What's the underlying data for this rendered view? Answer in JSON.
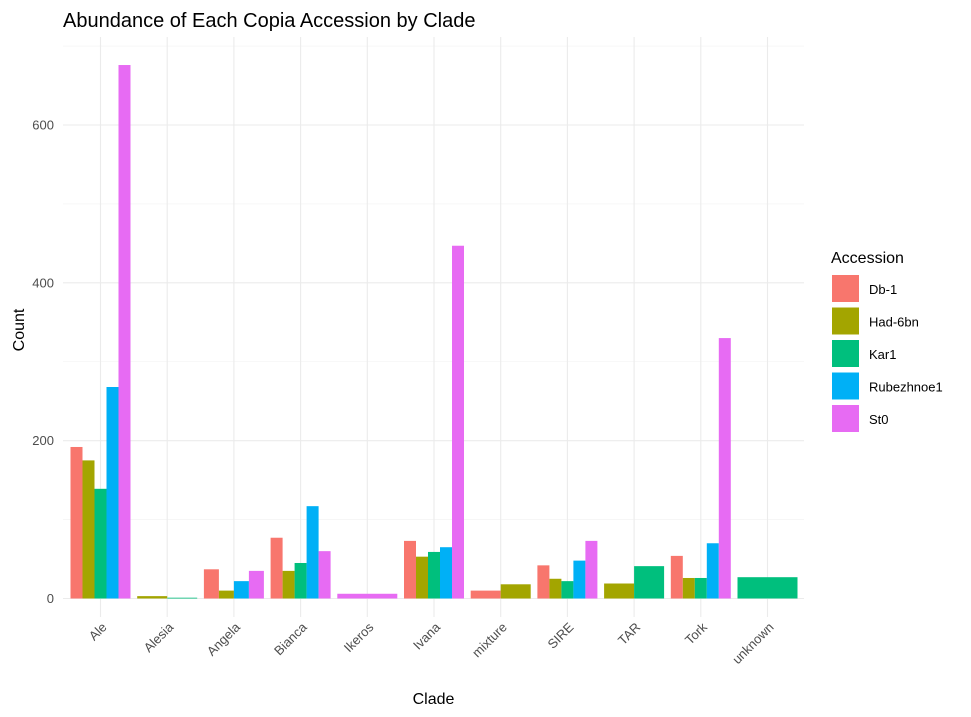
{
  "chart_data": {
    "type": "bar",
    "title": "Abundance of Each Copia Accession by Clade",
    "xlabel": "Clade",
    "ylabel": "Count",
    "ylim": [
      0,
      700
    ],
    "yticks": [
      0,
      200,
      400,
      600
    ],
    "grid": true,
    "legend": {
      "title": "Accession",
      "position": "right"
    },
    "categories": [
      "Ale",
      "Alesia",
      "Angela",
      "Bianca",
      "Ikeros",
      "Ivana",
      "mixture",
      "SIRE",
      "TAR",
      "Tork",
      "unknown"
    ],
    "series": [
      {
        "name": "Db-1",
        "color": "#F8766D",
        "values": [
          192,
          null,
          37,
          77,
          null,
          73,
          null,
          42,
          null,
          54,
          null
        ]
      },
      {
        "name": "Had-6bn",
        "color": "#A3A500",
        "values": [
          175,
          3,
          10,
          35,
          null,
          53,
          null,
          25,
          null,
          26,
          null
        ]
      },
      {
        "name": "Kar1",
        "color": "#00BF7D",
        "values": [
          139,
          1,
          null,
          45,
          null,
          59,
          null,
          22,
          null,
          26,
          null
        ]
      },
      {
        "name": "Rubezhnoe1",
        "color": "#00B0F6",
        "values": [
          268,
          null,
          22,
          117,
          null,
          65,
          null,
          48,
          null,
          70,
          null
        ]
      },
      {
        "name": "St0",
        "color": "#E76BF3",
        "values": [
          676,
          null,
          35,
          60,
          null,
          447,
          null,
          73,
          null,
          330,
          null
        ]
      }
    ],
    "groups": [
      {
        "category": "Ikeros",
        "bars": [
          {
            "series": "St0",
            "value": 6
          }
        ]
      },
      {
        "category": "mixture",
        "bars": [
          {
            "series": "Db-1",
            "value": 10
          },
          {
            "series": "Had-6bn",
            "value": 18
          }
        ]
      },
      {
        "category": "TAR",
        "bars": [
          {
            "series": "Had-6bn",
            "value": 19
          },
          {
            "series": "Kar1",
            "value": 41
          }
        ]
      },
      {
        "category": "unknown",
        "bars": [
          {
            "series": "Kar1",
            "value": 27
          }
        ]
      }
    ]
  }
}
